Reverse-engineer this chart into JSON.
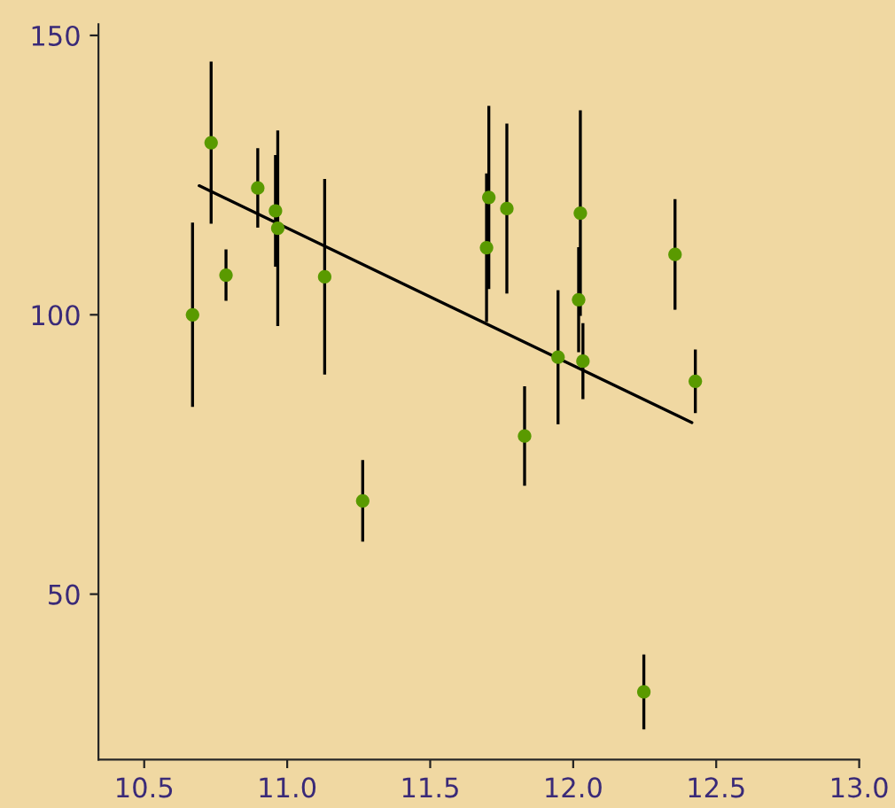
{
  "chart_data": {
    "type": "scatter",
    "x": [
      10.669,
      10.734,
      10.786,
      10.897,
      10.959,
      10.967,
      11.131,
      11.264,
      11.697,
      11.705,
      11.768,
      12.025,
      12.019,
      11.947,
      12.034,
      12.356,
      12.427,
      11.83,
      12.247
    ],
    "series": [
      {
        "color": "#5a9a00",
        "marker": "circle",
        "values": [
          100,
          130.8,
          107.1,
          122.7,
          118.6,
          115.5,
          106.8,
          66.7,
          112.0,
          121.0,
          119.0,
          118.2,
          102.7,
          92.4,
          91.7,
          110.8,
          88.1,
          78.3,
          32.5
        ],
        "errors": [
          16.5,
          14.5,
          4.6,
          7.1,
          10,
          17.5,
          17.5,
          7.3,
          13.3,
          16.4,
          15.2,
          18.4,
          9.4,
          12,
          6.8,
          9.9,
          5.7,
          8.9,
          6.7
        ]
      },
      {
        "type": "line",
        "color": "#000000",
        "x": [
          10.692,
          12.415
        ],
        "values": [
          123.1,
          80.7
        ]
      }
    ],
    "xlim": [
      10.34,
      13.0
    ],
    "ylim": [
      20.4,
      152
    ],
    "xticks": [
      10.5,
      {
        "value": 11.0,
        "label": "11.0"
      },
      11.5,
      {
        "value": 12.0,
        "label": "12.0"
      },
      12.5,
      {
        "value": 13.0,
        "label": "13.0"
      }
    ],
    "yticks": [
      50,
      100,
      150
    ],
    "grid": false,
    "legend": false,
    "line_style": "solid"
  }
}
